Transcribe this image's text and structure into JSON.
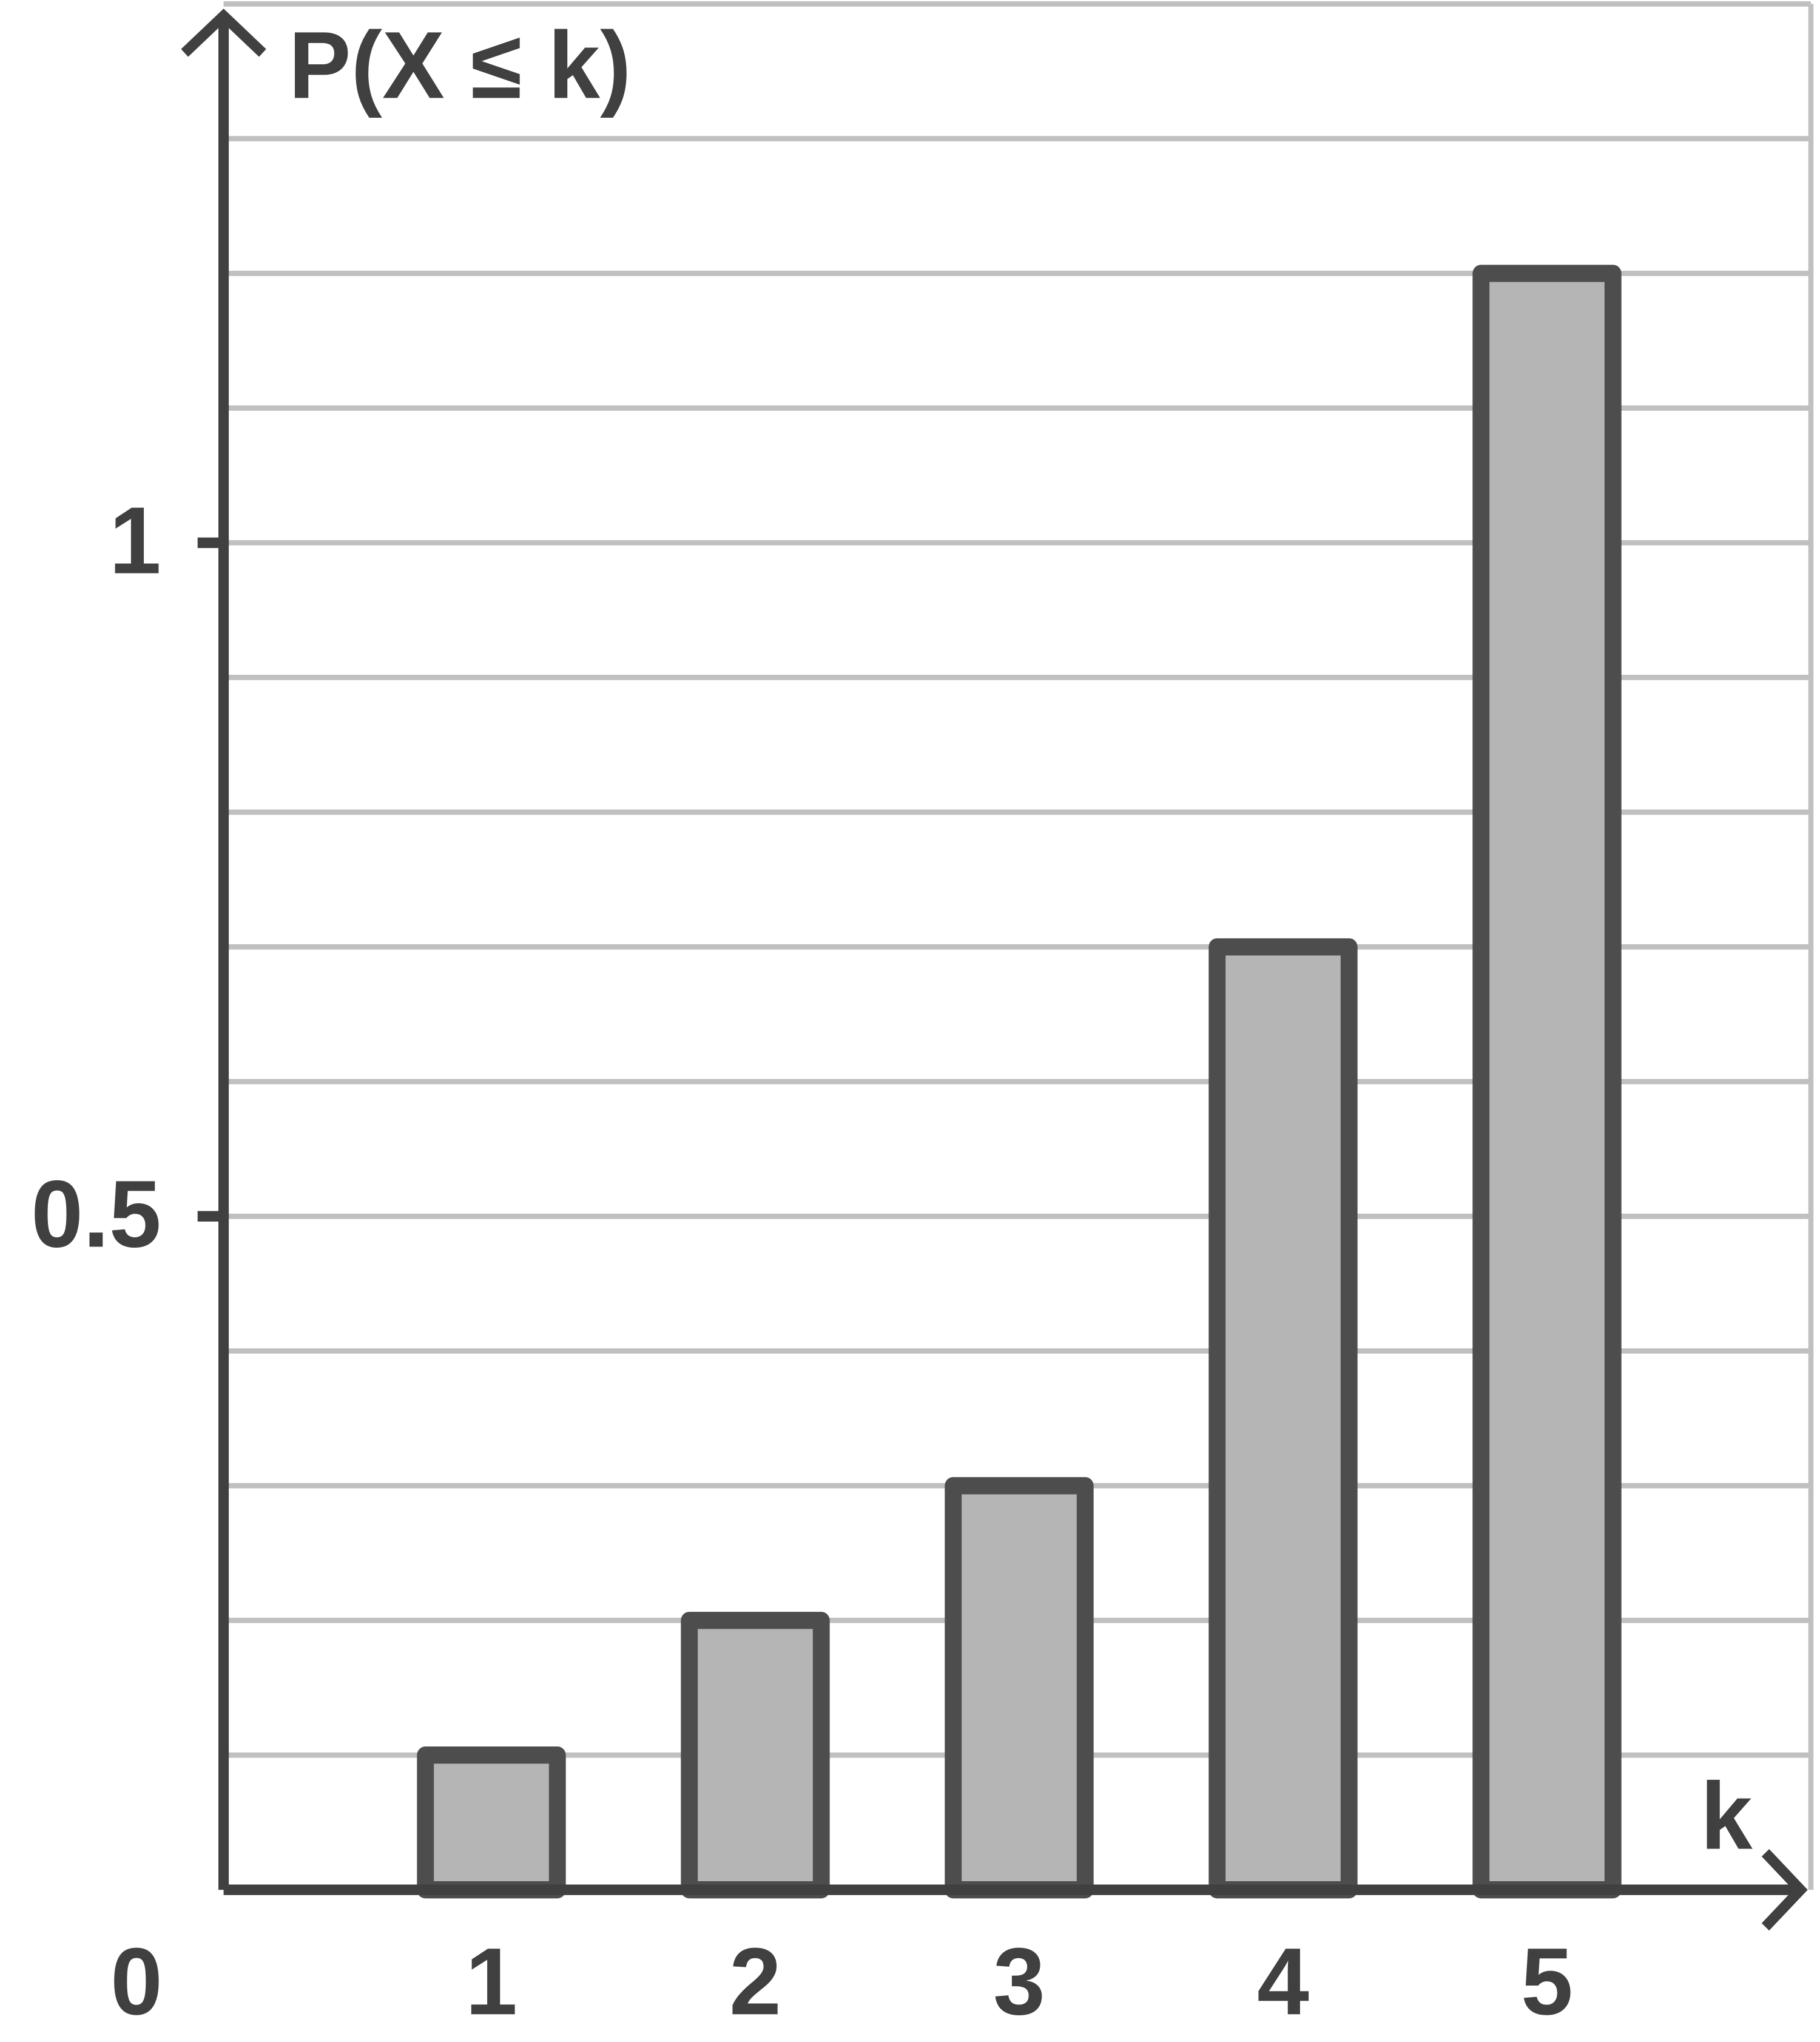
{
  "chart_data": {
    "type": "bar",
    "x_label": "k",
    "y_label": "P(X ≤ k)",
    "x": [
      1,
      2,
      3,
      4,
      5
    ],
    "values": [
      0.1,
      0.2,
      0.3,
      0.7,
      1.2
    ],
    "bar_width": 0.5,
    "color": "#b5b5b5",
    "edge_color": "#4d4d4d",
    "xlim": [
      0,
      6
    ],
    "xticks": [
      0,
      1,
      2,
      3,
      4,
      5
    ],
    "ylim": [
      0,
      1.4
    ],
    "yticks": [
      0.5,
      1
    ],
    "grid": true,
    "grid_values": [
      0.1,
      0.2,
      0.3,
      0.4,
      0.5,
      0.6,
      0.7,
      0.8,
      0.9,
      1,
      1.1,
      1.2,
      1.3,
      1.4
    ]
  }
}
